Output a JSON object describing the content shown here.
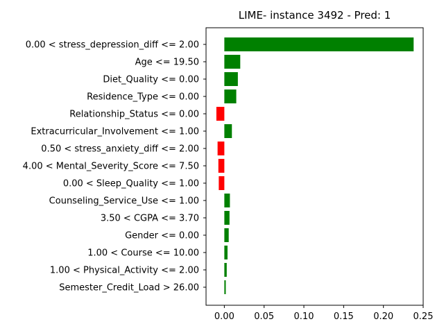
{
  "chart_data": {
    "type": "bar",
    "orientation": "horizontal",
    "title": "LIME- instance 3492 - Pred: 1",
    "xlabel": "",
    "ylabel": "",
    "xlim": [
      -0.023,
      0.25
    ],
    "xticks": [
      0.0,
      0.05,
      0.1,
      0.15,
      0.2,
      0.25
    ],
    "xtick_labels": [
      "0.00",
      "0.05",
      "0.10",
      "0.15",
      "0.20",
      "0.25"
    ],
    "grid": false,
    "legend": "none",
    "positive_color": "#008000",
    "negative_color": "#ff0000",
    "categories": [
      "0.00 < stress_depression_diff <= 2.00",
      "Age <= 19.50",
      "Diet_Quality <= 0.00",
      "Residence_Type <= 0.00",
      "Relationship_Status <= 0.00",
      "Extracurricular_Involvement <= 1.00",
      "0.50 < stress_anxiety_diff <= 2.00",
      "4.00 < Mental_Severity_Score <= 7.50",
      "0.00 < Sleep_Quality <= 1.00",
      "Counseling_Service_Use <= 1.00",
      "3.50 < CGPA <= 3.70",
      "Gender <= 0.00",
      "1.00 < Course <= 10.00",
      "1.00 < Physical_Activity <= 2.00",
      "Semester_Credit_Load > 26.00"
    ],
    "values": [
      0.238,
      0.02,
      0.017,
      0.015,
      -0.01,
      0.0095,
      -0.0085,
      -0.0075,
      -0.007,
      0.007,
      0.0065,
      0.0055,
      0.004,
      0.003,
      0.0018
    ]
  }
}
